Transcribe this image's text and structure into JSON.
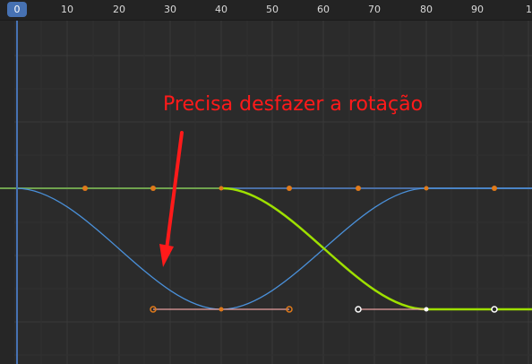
{
  "timeline": {
    "current_frame": "0",
    "ruler_labels": [
      "10",
      "20",
      "30",
      "40",
      "50",
      "60",
      "70",
      "80",
      "90",
      "10"
    ]
  },
  "annotation": {
    "text": "Precisa desfazer a rotação",
    "color": "#ff1a1a"
  },
  "colors": {
    "background": "#2b2b2b",
    "grid": "#3a3a3a",
    "playhead": "#4772b3",
    "blue_curve": "#4a90d9",
    "green_curve": "#9ee000",
    "flat_curve": "#6fa24e",
    "keyframe_orange": "#e07a1a",
    "keyframe_white": "#ffffff",
    "handle_line": "#e8a0a0"
  },
  "curves": [
    {
      "name": "blue-curve",
      "shape": "ease-in-out-dip"
    },
    {
      "name": "green-curve",
      "shape": "ease-in-out-drop"
    }
  ]
}
